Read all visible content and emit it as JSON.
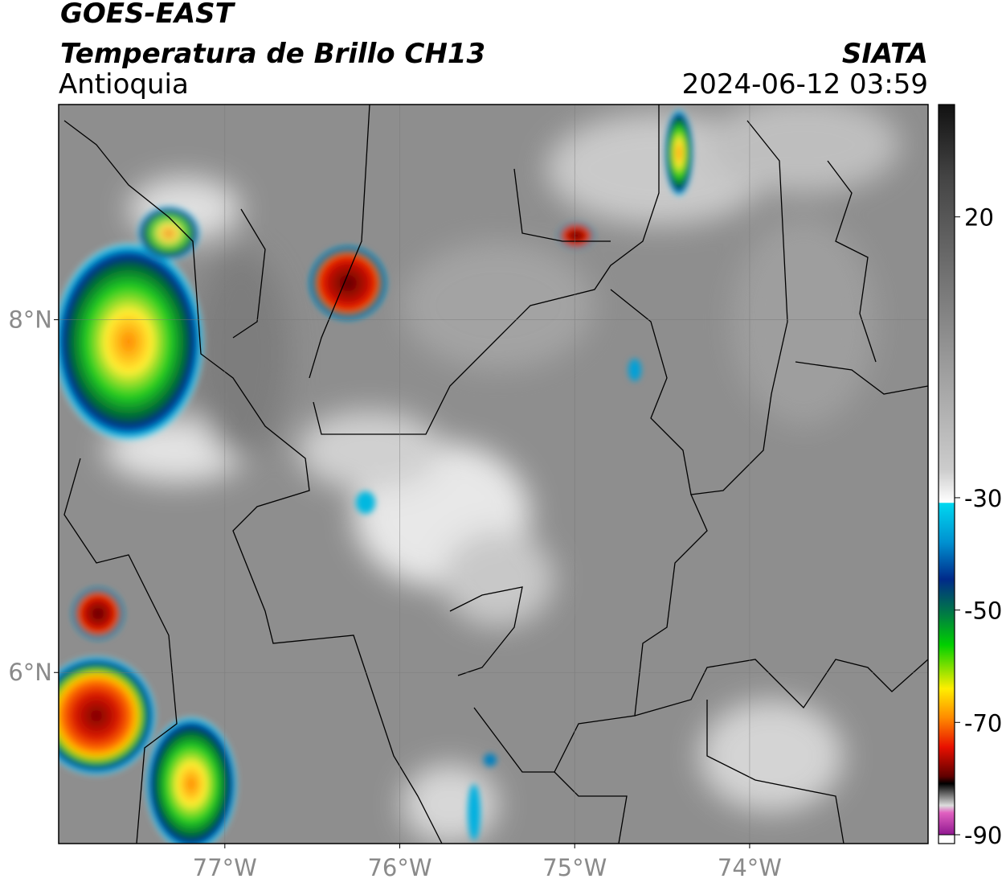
{
  "header": {
    "title": "GOES-EAST",
    "subtitle": "Temperatura de Brillo CH13",
    "region": "Antioquia",
    "source": "SIATA",
    "datetime": "2024-06-12 03:59"
  },
  "map": {
    "xlim": [
      -77.95,
      -72.98
    ],
    "ylim": [
      5.03,
      9.22
    ],
    "xticks": [
      {
        "value": -77,
        "label": "77°W"
      },
      {
        "value": -76,
        "label": "76°W"
      },
      {
        "value": -75,
        "label": "75°W"
      },
      {
        "value": -74,
        "label": "74°W"
      }
    ],
    "yticks": [
      {
        "value": 8,
        "label": "8°N"
      },
      {
        "value": 6,
        "label": "6°N"
      }
    ]
  },
  "colorbar": {
    "lim": [
      -90,
      40
    ],
    "ticks": [
      20,
      -30,
      -50,
      -70,
      -90
    ]
  }
}
